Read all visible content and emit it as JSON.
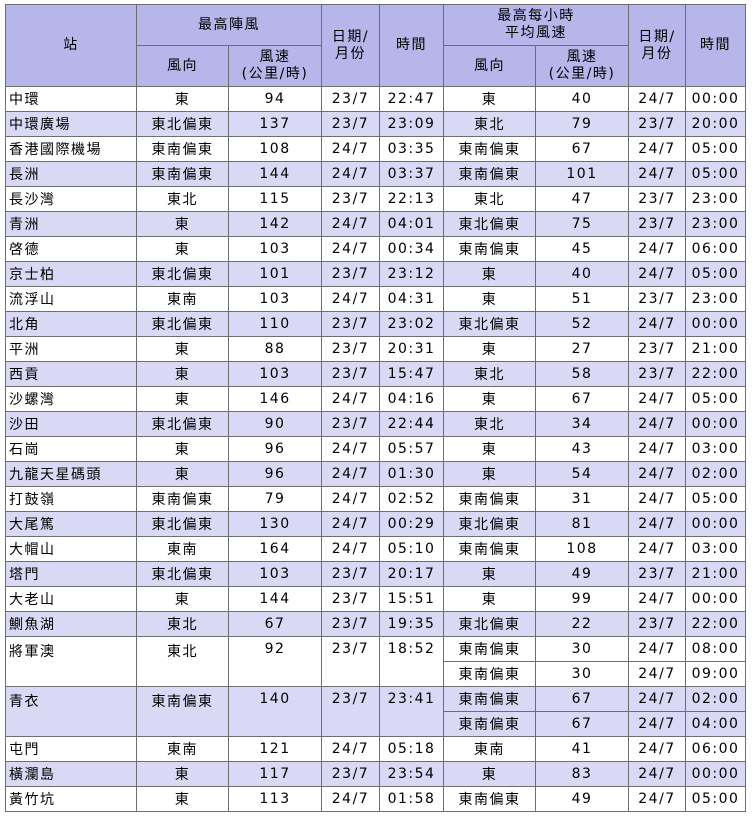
{
  "headers": {
    "station": "站",
    "gust": "最高陣風",
    "gust_dir": "風向",
    "gust_speed": "風速\n(公里/時)",
    "date1": "日期/\n月份",
    "time1": "時間",
    "mean": "最高每小時\n平均風速",
    "mean_dir": "風向",
    "mean_speed": "風速\n(公里/時)",
    "date2": "日期/\n月份",
    "time2": "時間"
  },
  "rows": [
    {
      "station": "中環",
      "gdir": "東",
      "gspd": "94",
      "gdate": "23/7",
      "gtime": "22:47",
      "mean": [
        {
          "dir": "東",
          "spd": "40",
          "date": "24/7",
          "time": "00:00"
        }
      ]
    },
    {
      "station": "中環廣場",
      "gdir": "東北偏東",
      "gspd": "137",
      "gdate": "23/7",
      "gtime": "23:09",
      "mean": [
        {
          "dir": "東北",
          "spd": "79",
          "date": "23/7",
          "time": "20:00"
        }
      ]
    },
    {
      "station": "香港國際機場",
      "gdir": "東南偏東",
      "gspd": "108",
      "gdate": "24/7",
      "gtime": "03:35",
      "mean": [
        {
          "dir": "東南偏東",
          "spd": "67",
          "date": "24/7",
          "time": "05:00"
        }
      ]
    },
    {
      "station": "長洲",
      "gdir": "東南偏東",
      "gspd": "144",
      "gdate": "24/7",
      "gtime": "03:37",
      "mean": [
        {
          "dir": "東南偏東",
          "spd": "101",
          "date": "24/7",
          "time": "05:00"
        }
      ]
    },
    {
      "station": "長沙灣",
      "gdir": "東北",
      "gspd": "115",
      "gdate": "23/7",
      "gtime": "22:13",
      "mean": [
        {
          "dir": "東北",
          "spd": "47",
          "date": "23/7",
          "time": "23:00"
        }
      ]
    },
    {
      "station": "青洲",
      "gdir": "東",
      "gspd": "142",
      "gdate": "24/7",
      "gtime": "04:01",
      "mean": [
        {
          "dir": "東北偏東",
          "spd": "75",
          "date": "23/7",
          "time": "23:00"
        }
      ]
    },
    {
      "station": "啓德",
      "gdir": "東",
      "gspd": "103",
      "gdate": "24/7",
      "gtime": "00:34",
      "mean": [
        {
          "dir": "東南偏東",
          "spd": "45",
          "date": "24/7",
          "time": "06:00"
        }
      ]
    },
    {
      "station": "京士柏",
      "gdir": "東北偏東",
      "gspd": "101",
      "gdate": "23/7",
      "gtime": "23:12",
      "mean": [
        {
          "dir": "東",
          "spd": "40",
          "date": "24/7",
          "time": "05:00"
        }
      ]
    },
    {
      "station": "流浮山",
      "gdir": "東南",
      "gspd": "103",
      "gdate": "24/7",
      "gtime": "04:31",
      "mean": [
        {
          "dir": "東",
          "spd": "51",
          "date": "23/7",
          "time": "23:00"
        }
      ]
    },
    {
      "station": "北角",
      "gdir": "東北偏東",
      "gspd": "110",
      "gdate": "23/7",
      "gtime": "23:02",
      "mean": [
        {
          "dir": "東北偏東",
          "spd": "52",
          "date": "24/7",
          "time": "00:00"
        }
      ]
    },
    {
      "station": "平洲",
      "gdir": "東",
      "gspd": "88",
      "gdate": "23/7",
      "gtime": "20:31",
      "mean": [
        {
          "dir": "東",
          "spd": "27",
          "date": "23/7",
          "time": "21:00"
        }
      ]
    },
    {
      "station": "西貢",
      "gdir": "東",
      "gspd": "103",
      "gdate": "23/7",
      "gtime": "15:47",
      "mean": [
        {
          "dir": "東北",
          "spd": "58",
          "date": "23/7",
          "time": "22:00"
        }
      ]
    },
    {
      "station": "沙螺灣",
      "gdir": "東",
      "gspd": "146",
      "gdate": "24/7",
      "gtime": "04:16",
      "mean": [
        {
          "dir": "東",
          "spd": "67",
          "date": "24/7",
          "time": "05:00"
        }
      ]
    },
    {
      "station": "沙田",
      "gdir": "東北偏東",
      "gspd": "90",
      "gdate": "23/7",
      "gtime": "22:44",
      "mean": [
        {
          "dir": "東北",
          "spd": "34",
          "date": "24/7",
          "time": "00:00"
        }
      ]
    },
    {
      "station": "石崗",
      "gdir": "東",
      "gspd": "96",
      "gdate": "24/7",
      "gtime": "05:57",
      "mean": [
        {
          "dir": "東",
          "spd": "43",
          "date": "24/7",
          "time": "03:00"
        }
      ]
    },
    {
      "station": "九龍天星碼頭",
      "gdir": "東",
      "gspd": "96",
      "gdate": "24/7",
      "gtime": "01:30",
      "mean": [
        {
          "dir": "東",
          "spd": "54",
          "date": "24/7",
          "time": "02:00"
        }
      ]
    },
    {
      "station": "打鼓嶺",
      "gdir": "東南偏東",
      "gspd": "79",
      "gdate": "24/7",
      "gtime": "02:52",
      "mean": [
        {
          "dir": "東南偏東",
          "spd": "31",
          "date": "24/7",
          "time": "05:00"
        }
      ]
    },
    {
      "station": "大尾篤",
      "gdir": "東北偏東",
      "gspd": "130",
      "gdate": "24/7",
      "gtime": "00:29",
      "mean": [
        {
          "dir": "東北偏東",
          "spd": "81",
          "date": "24/7",
          "time": "00:00"
        }
      ]
    },
    {
      "station": "大帽山",
      "gdir": "東南",
      "gspd": "164",
      "gdate": "24/7",
      "gtime": "05:10",
      "mean": [
        {
          "dir": "東南偏東",
          "spd": "108",
          "date": "24/7",
          "time": "03:00"
        }
      ]
    },
    {
      "station": "塔門",
      "gdir": "東北偏東",
      "gspd": "103",
      "gdate": "23/7",
      "gtime": "20:17",
      "mean": [
        {
          "dir": "東",
          "spd": "49",
          "date": "23/7",
          "time": "21:00"
        }
      ]
    },
    {
      "station": "大老山",
      "gdir": "東",
      "gspd": "144",
      "gdate": "23/7",
      "gtime": "15:51",
      "mean": [
        {
          "dir": "東",
          "spd": "99",
          "date": "24/7",
          "time": "00:00"
        }
      ]
    },
    {
      "station": "鰂魚湖",
      "gdir": "東北",
      "gspd": "67",
      "gdate": "23/7",
      "gtime": "19:35",
      "mean": [
        {
          "dir": "東北偏東",
          "spd": "22",
          "date": "23/7",
          "time": "22:00"
        }
      ]
    },
    {
      "station": "將軍澳",
      "gdir": "東北",
      "gspd": "92",
      "gdate": "23/7",
      "gtime": "18:52",
      "mean": [
        {
          "dir": "東南偏東",
          "spd": "30",
          "date": "24/7",
          "time": "08:00"
        },
        {
          "dir": "東南偏東",
          "spd": "30",
          "date": "24/7",
          "time": "09:00"
        }
      ]
    },
    {
      "station": "青衣",
      "gdir": "東南偏東",
      "gspd": "140",
      "gdate": "23/7",
      "gtime": "23:41",
      "mean": [
        {
          "dir": "東南偏東",
          "spd": "67",
          "date": "24/7",
          "time": "02:00"
        },
        {
          "dir": "東南偏東",
          "spd": "67",
          "date": "24/7",
          "time": "04:00"
        }
      ]
    },
    {
      "station": "屯門",
      "gdir": "東南",
      "gspd": "121",
      "gdate": "24/7",
      "gtime": "05:18",
      "mean": [
        {
          "dir": "東南",
          "spd": "41",
          "date": "24/7",
          "time": "06:00"
        }
      ]
    },
    {
      "station": "橫瀾島",
      "gdir": "東",
      "gspd": "117",
      "gdate": "23/7",
      "gtime": "23:54",
      "mean": [
        {
          "dir": "東",
          "spd": "83",
          "date": "24/7",
          "time": "00:00"
        }
      ]
    },
    {
      "station": "黃竹坑",
      "gdir": "東",
      "gspd": "113",
      "gdate": "24/7",
      "gtime": "01:58",
      "mean": [
        {
          "dir": "東南偏東",
          "spd": "49",
          "date": "24/7",
          "time": "05:00"
        }
      ]
    }
  ]
}
